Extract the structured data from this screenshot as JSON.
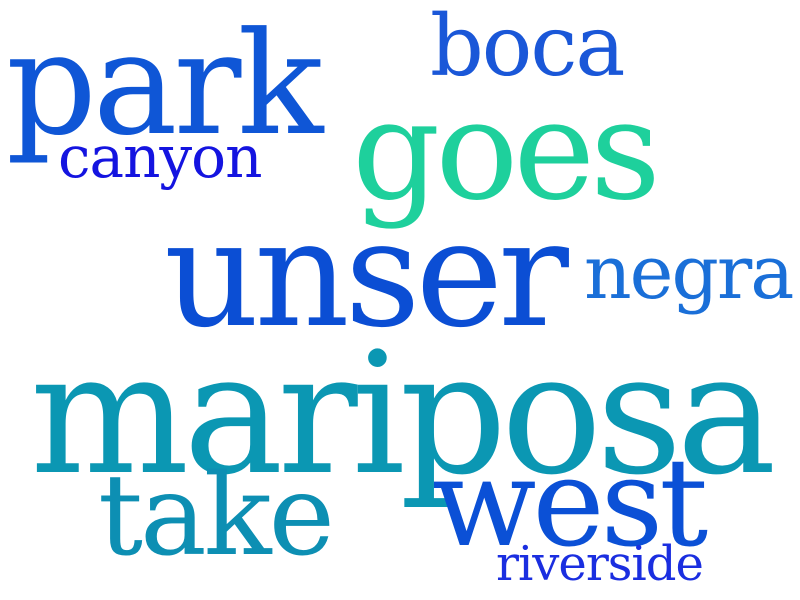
{
  "cloud": {
    "words": [
      {
        "id": "park",
        "text": "park",
        "color": "#0f56d6"
      },
      {
        "id": "boca",
        "text": "boca",
        "color": "#1a57d8"
      },
      {
        "id": "canyon",
        "text": "canyon",
        "color": "#1414e0"
      },
      {
        "id": "goes",
        "text": "goes",
        "color": "#1ed09c"
      },
      {
        "id": "unser",
        "text": "unser",
        "color": "#0b4ed4"
      },
      {
        "id": "negra",
        "text": "negra",
        "color": "#1a6fd8"
      },
      {
        "id": "mariposa",
        "text": "mariposa",
        "color": "#0b97b3"
      },
      {
        "id": "take",
        "text": "take",
        "color": "#0d8fb3"
      },
      {
        "id": "west",
        "text": "west",
        "color": "#0b50d6"
      },
      {
        "id": "riverside",
        "text": "riverside",
        "color": "#1a2ee0"
      }
    ]
  }
}
